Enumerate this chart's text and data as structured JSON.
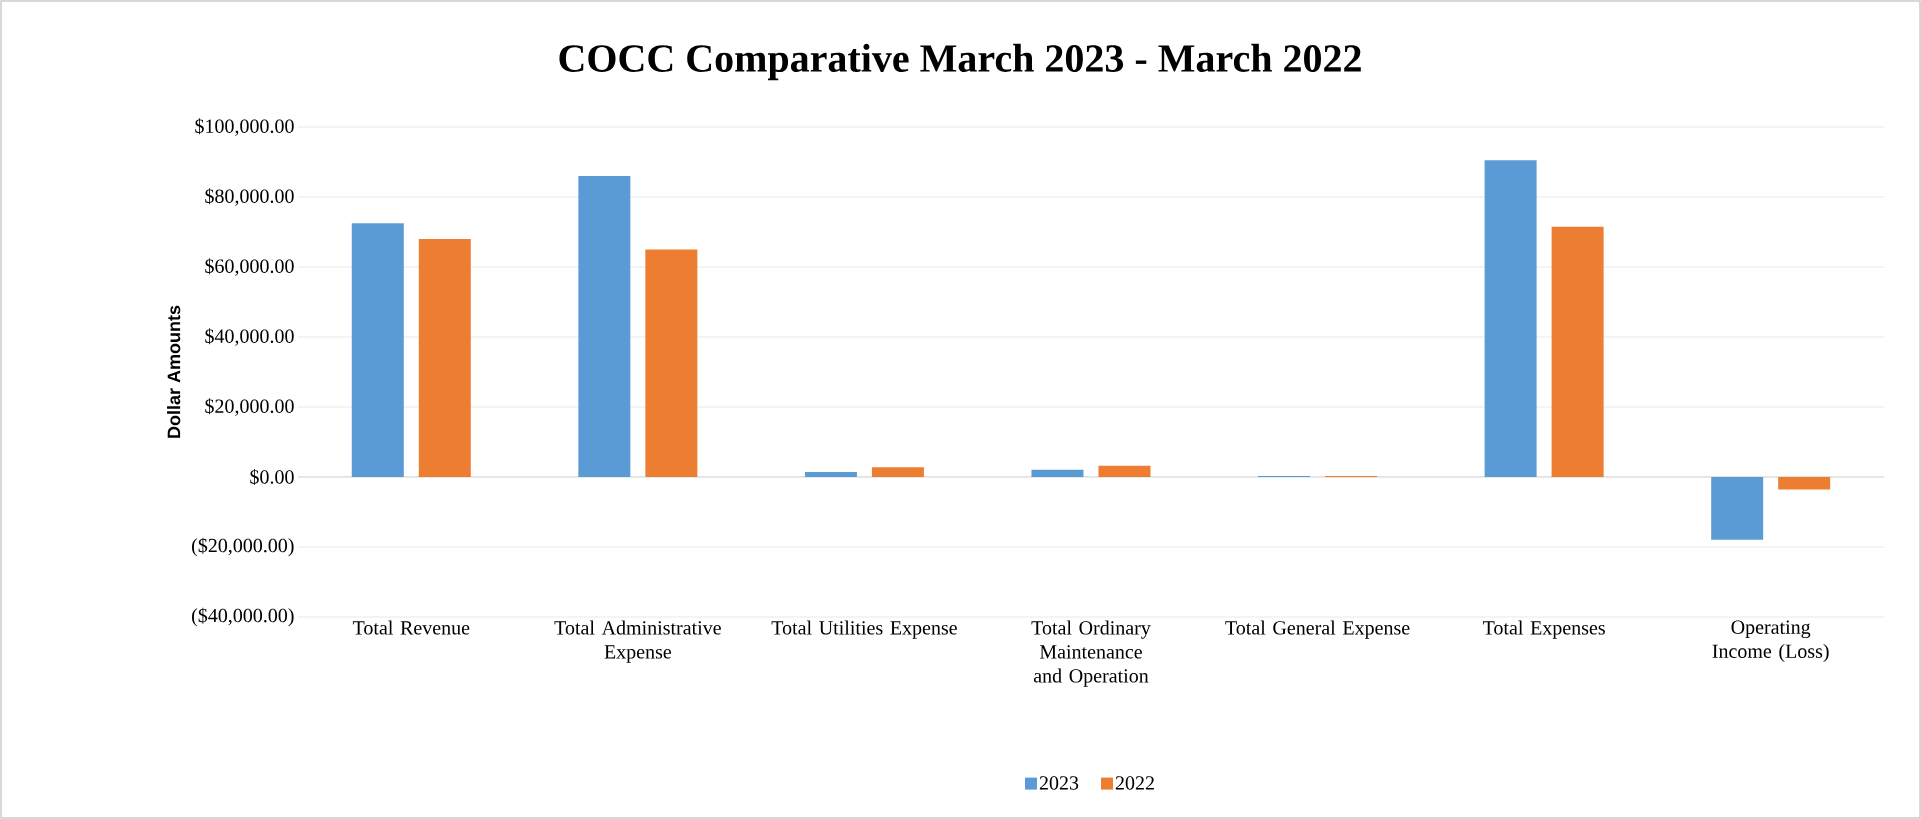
{
  "chart_data": {
    "type": "bar",
    "title": "COCC Comparative March 2023 - March 2022",
    "ylabel": "Dollar Amounts",
    "categories": [
      "Total Revenue",
      "Total Administrative Expense",
      "Total Utilities Expense",
      "Total Ordinary Maintenance and Operation",
      "Total General Expense",
      "Total Expenses",
      "Operating Income (Loss)"
    ],
    "series": [
      {
        "name": "2023",
        "color": "#5b9bd5",
        "values": [
          72500,
          86000,
          1400,
          2100,
          300,
          90500,
          -17900
        ]
      },
      {
        "name": "2022",
        "color": "#ed7d31",
        "values": [
          68000,
          65000,
          2800,
          3200,
          300,
          71500,
          -3600
        ]
      }
    ],
    "ylim": [
      -40000,
      100000
    ],
    "yticks": [
      {
        "value": -40000,
        "label": "($40,000.00)"
      },
      {
        "value": -20000,
        "label": "($20,000.00)"
      },
      {
        "value": 0,
        "label": "$0.00"
      },
      {
        "value": 20000,
        "label": "$20,000.00"
      },
      {
        "value": 40000,
        "label": "$40,000.00"
      },
      {
        "value": 60000,
        "label": "$60,000.00"
      },
      {
        "value": 80000,
        "label": "$80,000.00"
      },
      {
        "value": 100000,
        "label": "$100,000.00"
      }
    ],
    "grid": "y",
    "legend": "bottom"
  }
}
